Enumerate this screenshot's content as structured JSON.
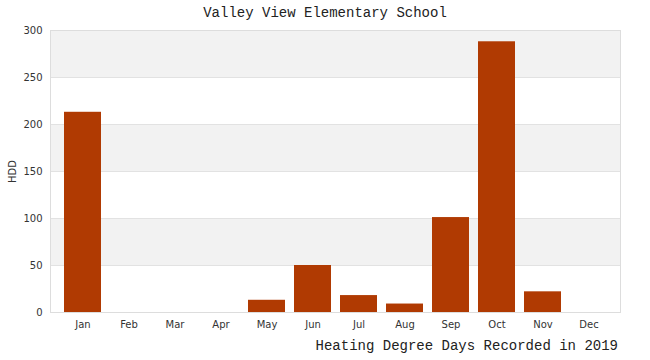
{
  "chart_data": {
    "type": "bar",
    "title": "Valley View Elementary School",
    "x_label": "Heating Degree Days Recorded in 2019",
    "y_label": "HDD",
    "categories": [
      "Jan",
      "Feb",
      "Mar",
      "Apr",
      "May",
      "Jun",
      "Jul",
      "Aug",
      "Sep",
      "Oct",
      "Nov",
      "Dec"
    ],
    "values": [
      213,
      0,
      0,
      0,
      13,
      50,
      18,
      9,
      101,
      288,
      22,
      0
    ],
    "color": "#b03a02",
    "ylim": [
      0,
      300
    ],
    "yticks": [
      0,
      50,
      100,
      150,
      200,
      250,
      300
    ],
    "grid": true
  }
}
